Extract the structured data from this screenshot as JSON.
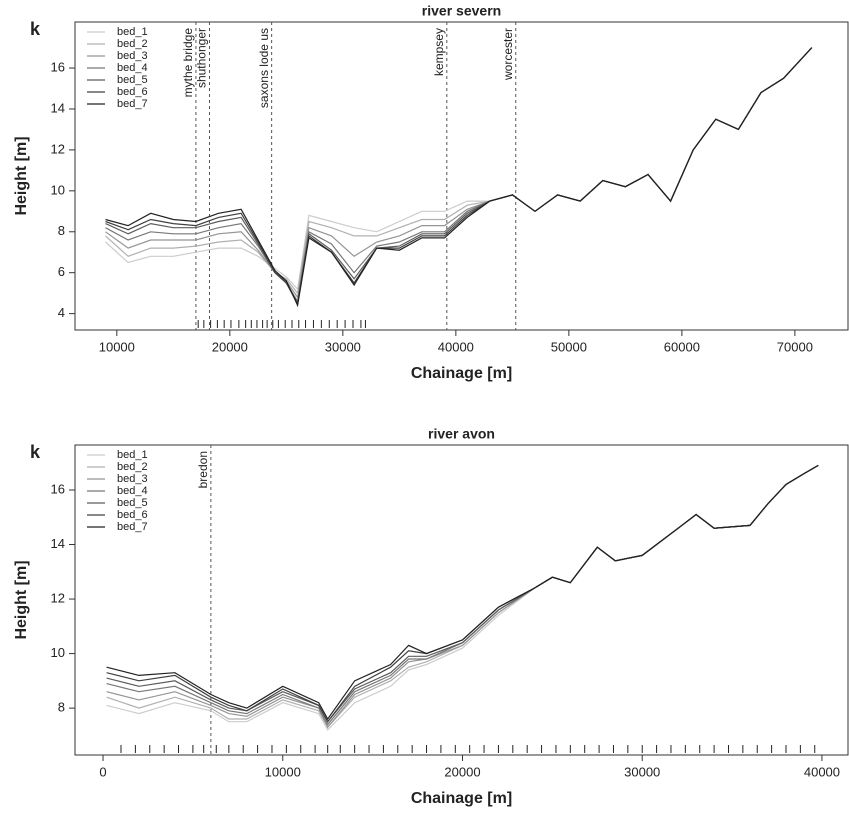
{
  "chart_data": [
    {
      "type": "line",
      "panel_label": "k",
      "title": "river severn",
      "x_label": "Chainage [m]",
      "y_label": "Height [m]",
      "xlim": [
        6300,
        74700
      ],
      "ylim": [
        3.2,
        18.25
      ],
      "xticks": [
        10000,
        20000,
        30000,
        40000,
        50000,
        60000,
        70000
      ],
      "yticks": [
        4,
        6,
        8,
        10,
        12,
        14,
        16
      ],
      "legend": "top-left",
      "annotations": [
        {
          "x": 17000,
          "label": "mythe bridge"
        },
        {
          "x": 18200,
          "label": "shuthonger"
        },
        {
          "x": 23700,
          "label": "saxons lode us"
        },
        {
          "x": 39200,
          "label": "kempsey"
        },
        {
          "x": 45300,
          "label": "worcester"
        }
      ],
      "rug": [
        17200,
        17700,
        18300,
        18900,
        19500,
        20100,
        20800,
        21400,
        21900,
        22400,
        22900,
        23300,
        23800,
        24300,
        24900,
        25500,
        26100,
        26700,
        27400,
        28100,
        28800,
        29500,
        30200,
        30900,
        31600,
        32000
      ],
      "x": [
        9000,
        11000,
        13000,
        15000,
        17000,
        19000,
        21000,
        22500,
        24000,
        25000,
        26000,
        27000,
        29000,
        31000,
        33000,
        35000,
        37000,
        39000,
        41000,
        43000,
        45000,
        47000,
        49000,
        51000,
        53000,
        55000,
        57000,
        59000,
        61000,
        63000,
        65000,
        67000,
        69000,
        71500
      ],
      "series": [
        {
          "name": "bed_1",
          "color": "#cccccc",
          "values": [
            7.5,
            6.5,
            6.8,
            6.8,
            7.0,
            7.2,
            7.2,
            6.8,
            6.2,
            5.8,
            5.2,
            8.8,
            8.5,
            8.2,
            8.0,
            8.5,
            9.0,
            9.0,
            9.5,
            9.5,
            9.8,
            9.0,
            9.8,
            9.5,
            10.5,
            10.2,
            10.8,
            9.5,
            12.0,
            13.5,
            13.0,
            14.8,
            15.5,
            17.0
          ]
        },
        {
          "name": "bed_2",
          "color": "#b0b0b0",
          "values": [
            7.8,
            6.8,
            7.2,
            7.2,
            7.3,
            7.5,
            7.6,
            7.0,
            6.0,
            5.7,
            5.0,
            8.5,
            8.2,
            7.8,
            7.8,
            8.2,
            8.6,
            8.6,
            9.3,
            9.5,
            9.8,
            9.0,
            9.8,
            9.5,
            10.5,
            10.2,
            10.8,
            9.5,
            12.0,
            13.5,
            13.0,
            14.8,
            15.5,
            17.0
          ]
        },
        {
          "name": "bed_3",
          "color": "#949494",
          "values": [
            8.0,
            7.2,
            7.6,
            7.6,
            7.6,
            7.9,
            8.0,
            7.1,
            6.0,
            5.6,
            4.8,
            8.2,
            7.8,
            6.8,
            7.5,
            7.8,
            8.3,
            8.3,
            9.1,
            9.5,
            9.8,
            9.0,
            9.8,
            9.5,
            10.5,
            10.2,
            10.8,
            9.5,
            12.0,
            13.5,
            13.0,
            14.8,
            15.5,
            17.0
          ]
        },
        {
          "name": "bed_4",
          "color": "#787878",
          "values": [
            8.2,
            7.6,
            8.0,
            7.9,
            7.9,
            8.2,
            8.4,
            7.3,
            6.0,
            5.5,
            4.6,
            8.0,
            7.4,
            6.0,
            7.3,
            7.5,
            8.0,
            8.0,
            9.0,
            9.5,
            9.8,
            9.0,
            9.8,
            9.5,
            10.5,
            10.2,
            10.8,
            9.5,
            12.0,
            13.5,
            13.0,
            14.8,
            15.5,
            17.0
          ]
        },
        {
          "name": "bed_5",
          "color": "#5c5c5c",
          "values": [
            8.4,
            7.9,
            8.4,
            8.2,
            8.2,
            8.5,
            8.7,
            7.4,
            6.0,
            5.5,
            4.5,
            7.9,
            7.1,
            5.7,
            7.2,
            7.3,
            7.9,
            7.9,
            8.9,
            9.5,
            9.8,
            9.0,
            9.8,
            9.5,
            10.5,
            10.2,
            10.8,
            9.5,
            12.0,
            13.5,
            13.0,
            14.8,
            15.5,
            17.0
          ]
        },
        {
          "name": "bed_6",
          "color": "#404040",
          "values": [
            8.5,
            8.1,
            8.6,
            8.4,
            8.3,
            8.7,
            8.9,
            7.5,
            6.0,
            5.5,
            4.5,
            7.8,
            7.0,
            5.5,
            7.2,
            7.2,
            7.8,
            7.8,
            8.8,
            9.5,
            9.8,
            9.0,
            9.8,
            9.5,
            10.5,
            10.2,
            10.8,
            9.5,
            12.0,
            13.5,
            13.0,
            14.8,
            15.5,
            17.0
          ]
        },
        {
          "name": "bed_7",
          "color": "#222222",
          "values": [
            8.6,
            8.3,
            8.9,
            8.6,
            8.5,
            8.9,
            9.1,
            7.6,
            6.1,
            5.6,
            4.4,
            7.7,
            7.0,
            5.4,
            7.2,
            7.1,
            7.7,
            7.7,
            8.7,
            9.5,
            9.8,
            9.0,
            9.8,
            9.5,
            10.5,
            10.2,
            10.8,
            9.5,
            12.0,
            13.5,
            13.0,
            14.8,
            15.5,
            17.0
          ]
        }
      ]
    },
    {
      "type": "line",
      "panel_label": "k",
      "title": "river avon",
      "x_label": "Chainage [m]",
      "y_label": "Height [m]",
      "xlim": [
        -1560,
        41450
      ],
      "ylim": [
        6.28,
        17.65
      ],
      "xticks": [
        0,
        10000,
        20000,
        30000,
        40000
      ],
      "yticks": [
        8,
        10,
        12,
        14,
        16
      ],
      "legend": "top-left",
      "annotations": [
        {
          "x": 6000,
          "label": "bredon"
        }
      ],
      "rug": [
        1000,
        1800,
        2600,
        3400,
        4200,
        5000,
        5600,
        6300,
        7000,
        7800,
        8600,
        9400,
        10200,
        11000,
        11800,
        12500,
        13200,
        14000,
        14800,
        15600,
        16400,
        17200,
        18000,
        18800,
        19600,
        20400,
        21200,
        22000,
        22800,
        23600,
        24400,
        25200,
        26000,
        26800,
        27600,
        28400,
        29200,
        30000,
        30800,
        31600,
        32400,
        33200,
        34000,
        34800,
        35600,
        36400,
        37200,
        38000,
        38800,
        39600
      ],
      "x": [
        200,
        2000,
        4000,
        6000,
        7000,
        8000,
        10000,
        12000,
        12500,
        14000,
        16000,
        17000,
        18000,
        20000,
        22000,
        24000,
        25000,
        26000,
        27500,
        28500,
        30000,
        32000,
        33000,
        34000,
        36000,
        37000,
        38000,
        39000,
        39800
      ],
      "series": [
        {
          "name": "bed_1",
          "color": "#cccccc",
          "values": [
            8.1,
            7.8,
            8.2,
            7.9,
            7.5,
            7.5,
            8.2,
            7.8,
            7.2,
            8.2,
            8.8,
            9.4,
            9.6,
            10.2,
            11.4,
            12.4,
            12.8,
            12.6,
            13.9,
            13.4,
            13.6,
            14.6,
            15.1,
            14.6,
            14.7,
            15.5,
            16.2,
            16.6,
            16.9
          ]
        },
        {
          "name": "bed_2",
          "color": "#b0b0b0",
          "values": [
            8.4,
            8.0,
            8.4,
            8.0,
            7.6,
            7.6,
            8.3,
            7.9,
            7.3,
            8.4,
            9.0,
            9.5,
            9.7,
            10.3,
            11.5,
            12.4,
            12.8,
            12.6,
            13.9,
            13.4,
            13.6,
            14.6,
            15.1,
            14.6,
            14.7,
            15.5,
            16.2,
            16.6,
            16.9
          ]
        },
        {
          "name": "bed_3",
          "color": "#949494",
          "values": [
            8.6,
            8.3,
            8.6,
            8.1,
            7.8,
            7.7,
            8.4,
            8.0,
            7.3,
            8.5,
            9.1,
            9.7,
            9.8,
            10.3,
            11.5,
            12.4,
            12.8,
            12.6,
            13.9,
            13.4,
            13.6,
            14.6,
            15.1,
            14.6,
            14.7,
            15.5,
            16.2,
            16.6,
            16.9
          ]
        },
        {
          "name": "bed_4",
          "color": "#787878",
          "values": [
            8.9,
            8.6,
            8.8,
            8.2,
            7.9,
            7.8,
            8.5,
            8.0,
            7.4,
            8.6,
            9.2,
            9.8,
            9.8,
            10.4,
            11.6,
            12.4,
            12.8,
            12.6,
            13.9,
            13.4,
            13.6,
            14.6,
            15.1,
            14.6,
            14.7,
            15.5,
            16.2,
            16.6,
            16.9
          ]
        },
        {
          "name": "bed_5",
          "color": "#5c5c5c",
          "values": [
            9.1,
            8.8,
            9.0,
            8.3,
            8.0,
            7.9,
            8.6,
            8.1,
            7.5,
            8.7,
            9.3,
            9.9,
            9.9,
            10.4,
            11.6,
            12.4,
            12.8,
            12.6,
            13.9,
            13.4,
            13.6,
            14.6,
            15.1,
            14.6,
            14.7,
            15.5,
            16.2,
            16.6,
            16.9
          ]
        },
        {
          "name": "bed_6",
          "color": "#404040",
          "values": [
            9.3,
            9.0,
            9.2,
            8.4,
            8.1,
            7.9,
            8.7,
            8.1,
            7.5,
            8.8,
            9.5,
            10.1,
            10.0,
            10.5,
            11.7,
            12.4,
            12.8,
            12.6,
            13.9,
            13.4,
            13.6,
            14.6,
            15.1,
            14.6,
            14.7,
            15.5,
            16.2,
            16.6,
            16.9
          ]
        },
        {
          "name": "bed_7",
          "color": "#222222",
          "values": [
            9.5,
            9.2,
            9.3,
            8.5,
            8.2,
            8.0,
            8.8,
            8.2,
            7.6,
            9.0,
            9.6,
            10.3,
            10.0,
            10.5,
            11.7,
            12.4,
            12.8,
            12.6,
            13.9,
            13.4,
            13.6,
            14.6,
            15.1,
            14.6,
            14.7,
            15.5,
            16.2,
            16.6,
            16.9
          ]
        }
      ]
    }
  ]
}
